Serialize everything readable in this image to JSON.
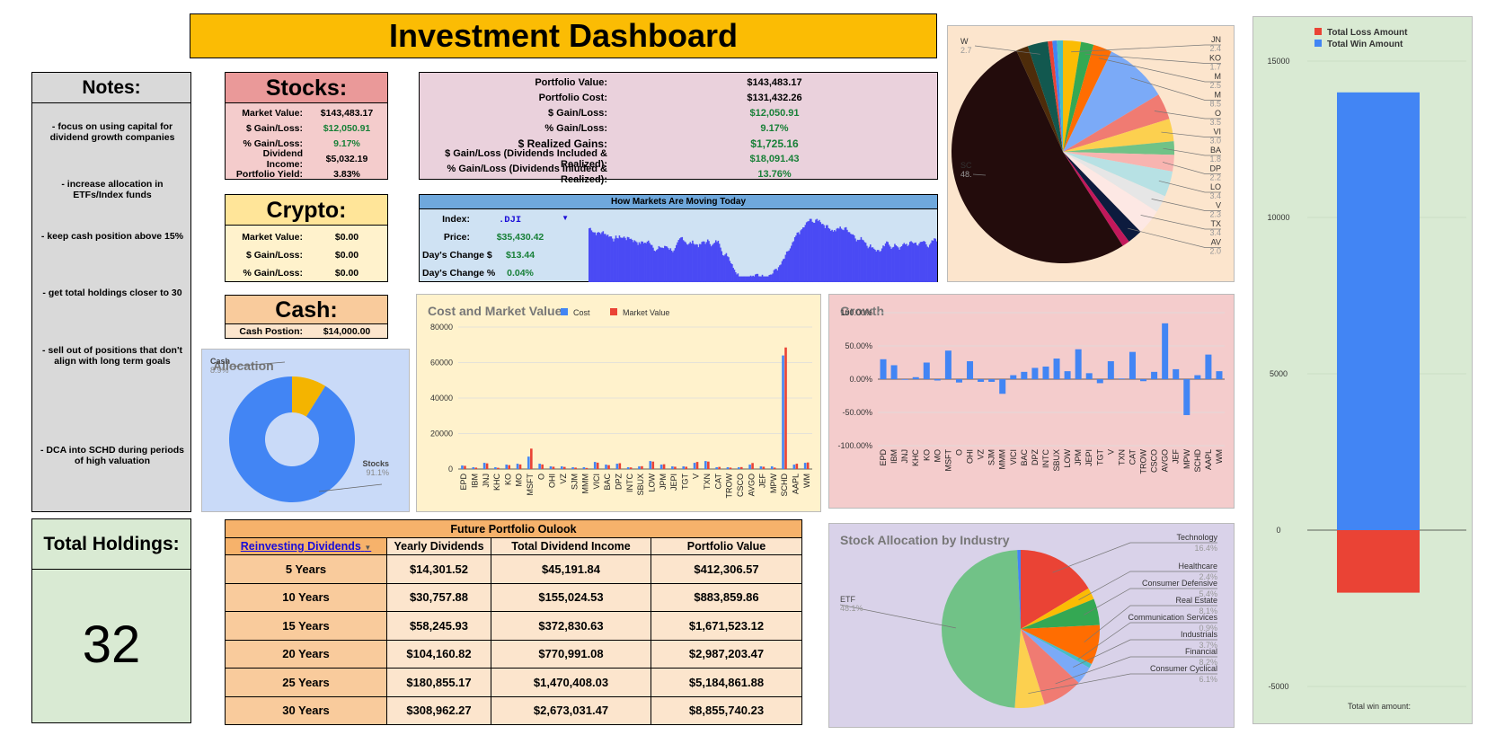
{
  "title": "Investment Dashboard",
  "notes": {
    "title": "Notes:",
    "items": [
      "- focus on using capital for dividend growth companies",
      "- increase allocation in ETFs/Index funds",
      "- keep cash position above 15%",
      "- get total holdings closer to 30",
      "- sell out of positions that don't align with long term goals",
      "- DCA into SCHD during periods of high valuation"
    ]
  },
  "holdings": {
    "title": "Total Holdings:",
    "value": "32"
  },
  "stocks": {
    "title": "Stocks:",
    "rows": [
      {
        "k": "Market Value:",
        "v": "$143,483.17"
      },
      {
        "k": "$ Gain/Loss:",
        "v": "$12,050.91"
      },
      {
        "k": "% Gain/Loss:",
        "v": "9.17%"
      },
      {
        "k": "Dividend Income:",
        "v": "$5,032.19"
      },
      {
        "k": "Portfolio Yield:",
        "v": "3.83%"
      }
    ]
  },
  "crypto": {
    "title": "Crypto:",
    "rows": [
      {
        "k": "Market Value:",
        "v": "$0.00"
      },
      {
        "k": "$ Gain/Loss:",
        "v": "$0.00"
      },
      {
        "k": "% Gain/Loss:",
        "v": "$0.00"
      }
    ]
  },
  "cash": {
    "title": "Cash:",
    "k": "Cash Postion:",
    "v": "$14,000.00"
  },
  "portfolio": {
    "rows": [
      {
        "k": "Portfolio Value:",
        "v": "$143,483.17"
      },
      {
        "k": "Portfolio Cost:",
        "v": "$131,432.26"
      },
      {
        "k": "$ Gain/Loss:",
        "v": "$12,050.91"
      },
      {
        "k": "% Gain/Loss:",
        "v": "9.17%"
      },
      {
        "k": "$ Realized Gains:",
        "v": "$1,725.16"
      },
      {
        "k": "$ Gain/Loss (Dividends Included & Realized):",
        "v": "$18,091.43"
      },
      {
        "k": "% Gain/Loss (Dividends Inluded & Realized):",
        "v": "13.76%"
      }
    ]
  },
  "markets": {
    "title": "How Markets Are Moving Today",
    "index_label": "Index:",
    "index_value": ".DJI",
    "price_label": "Price:",
    "price_value": "$35,430.42",
    "change_label": "Day's Change $",
    "change_value": "$13.44",
    "pct_label": "Day's Change %",
    "pct_value": "0.04%",
    "bar_color": "#4a4af4"
  },
  "outlook": {
    "title": "Future Portfolio Oulook",
    "headers": [
      "Reinvesting Dividends",
      "Yearly Dividends",
      "Total Dividend Income",
      "Portfolio Value"
    ],
    "rows": [
      [
        "5 Years",
        "$14,301.52",
        "$45,191.84",
        "$412,306.57"
      ],
      [
        "10 Years",
        "$30,757.88",
        "$155,024.53",
        "$883,859.86"
      ],
      [
        "15 Years",
        "$58,245.93",
        "$372,830.63",
        "$1,671,523.12"
      ],
      [
        "20 Years",
        "$104,160.82",
        "$770,991.08",
        "$2,987,203.47"
      ],
      [
        "25 Years",
        "$180,855.17",
        "$1,470,408.03",
        "$5,184,861.88"
      ],
      [
        "30 Years",
        "$308,962.27",
        "$2,673,031.47",
        "$8,855,740.23"
      ]
    ]
  },
  "chart_data": [
    {
      "id": "allocation",
      "type": "pie",
      "title": "Allocation",
      "slices": [
        {
          "label": "Cash",
          "value": 8.9,
          "pct": "8.9%",
          "color": "#f4b400"
        },
        {
          "label": "Stocks",
          "value": 91.1,
          "pct": "91.1%",
          "color": "#4285f4"
        }
      ]
    },
    {
      "id": "cost_market",
      "type": "bar",
      "title": "Cost and Market Value",
      "legend": "top",
      "ylim": [
        0,
        80000
      ],
      "yticks": [
        "0",
        "20000",
        "40000",
        "60000",
        "80000"
      ],
      "categories": [
        "EPD",
        "IBM",
        "JNJ",
        "KHC",
        "KO",
        "MO",
        "MSFT",
        "O",
        "OHI",
        "VZ",
        "SJM",
        "MMM",
        "VICI",
        "BAC",
        "DPZ",
        "INTC",
        "SBUX",
        "LOW",
        "JPM",
        "JEPI",
        "TGT",
        "V",
        "TXN",
        "CAT",
        "TROW",
        "CSCO",
        "AVGO",
        "JEF",
        "MPW",
        "SCHD",
        "AAPL",
        "WM"
      ],
      "series": [
        {
          "name": "Cost",
          "color": "#4285f4",
          "values": [
            2000,
            1000,
            3500,
            1000,
            2500,
            3000,
            7000,
            3000,
            1500,
            1500,
            1000,
            1000,
            4000,
            2500,
            3000,
            1000,
            1500,
            4500,
            2500,
            1500,
            1500,
            3500,
            4500,
            1000,
            1000,
            1000,
            2500,
            1500,
            1500,
            64000,
            2500,
            3500
          ]
        },
        {
          "name": "Market Value",
          "color": "#ea4335",
          "values": [
            1800,
            800,
            3200,
            700,
            2200,
            2600,
            11500,
            2600,
            1300,
            1200,
            800,
            600,
            3600,
            2200,
            3300,
            900,
            1600,
            4200,
            2700,
            1300,
            1300,
            4000,
            4200,
            1200,
            800,
            1100,
            3400,
            1300,
            800,
            68500,
            3000,
            3700
          ]
        }
      ]
    },
    {
      "id": "growth",
      "type": "bar",
      "title": "Growth",
      "ylim": [
        -100,
        100
      ],
      "yticks": [
        "100.00%",
        "50.00%",
        "0.00%",
        "-50.00%",
        "-100.00%"
      ],
      "categories": [
        "EPD",
        "IBM",
        "JNJ",
        "KHC",
        "KO",
        "MO",
        "MSFT",
        "O",
        "OHI",
        "VZ",
        "SJM",
        "MMM",
        "VICI",
        "BAC",
        "DPZ",
        "INTC",
        "SBUX",
        "LOW",
        "JPM",
        "JEPI",
        "TGT",
        "V",
        "TXN",
        "CAT",
        "TROW",
        "CSCO",
        "AVGO",
        "JEF",
        "MPW",
        "SCHD",
        "AAPL",
        "WM"
      ],
      "series": [
        {
          "name": "Growth",
          "color": "#4285f4",
          "values": [
            30,
            21,
            -1,
            3,
            25,
            -2,
            43,
            -5,
            27,
            -4,
            -4,
            -22,
            6,
            11,
            17,
            19,
            31,
            12,
            45,
            9,
            -6,
            27,
            1,
            41,
            -3,
            11,
            84,
            15,
            -54,
            6,
            37,
            12
          ]
        }
      ]
    },
    {
      "id": "industry",
      "type": "pie",
      "title": "Stock Allocation by Industry",
      "slices": [
        {
          "label": "Technology",
          "value": 16.4,
          "pct": "16.4%",
          "color": "#ea4335"
        },
        {
          "label": "Healthcare",
          "value": 2.4,
          "pct": "2.4%",
          "color": "#fbbc04"
        },
        {
          "label": "Consumer Defensive",
          "value": 5.4,
          "pct": "5.4%",
          "color": "#34a853"
        },
        {
          "label": "Real Estate",
          "value": 8.1,
          "pct": "8.1%",
          "color": "#ff6d01"
        },
        {
          "label": "Communication Services",
          "value": 0.9,
          "pct": "0.9%",
          "color": "#46bdc6"
        },
        {
          "label": "Industrials",
          "value": 3.7,
          "pct": "3.7%",
          "color": "#7baaf7"
        },
        {
          "label": "Financial",
          "value": 8.2,
          "pct": "8.2%",
          "color": "#f07b72"
        },
        {
          "label": "Consumer Cyclical",
          "value": 6.1,
          "pct": "6.1%",
          "color": "#fcd04f"
        },
        {
          "label": "ETF",
          "value": 48.1,
          "pct": "48.1%",
          "color": "#71c287"
        },
        {
          "label": "",
          "value": 0.7,
          "pct": "",
          "color": "#4285f4"
        }
      ]
    },
    {
      "id": "holdings_pie",
      "type": "pie",
      "title": "",
      "slices": [
        {
          "label": "JN",
          "value": 2.4,
          "pct": "2.4",
          "color": "#fbbc04"
        },
        {
          "label": "KO",
          "value": 1.7,
          "pct": "1.7",
          "color": "#34a853"
        },
        {
          "label": "M",
          "value": 2.5,
          "pct": "2.5",
          "color": "#ff6d01"
        },
        {
          "label": "M",
          "value": 8.5,
          "pct": "8.5",
          "color": "#7baaf7"
        },
        {
          "label": "O",
          "value": 3.5,
          "pct": "3.5",
          "color": "#f07b72"
        },
        {
          "label": "VI",
          "value": 3.0,
          "pct": "3.0",
          "color": "#fcd04f"
        },
        {
          "label": "BA",
          "value": 1.8,
          "pct": "1.8",
          "color": "#71c287"
        },
        {
          "label": "DP",
          "value": 2.2,
          "pct": "2.2",
          "color": "#f8b4b0"
        },
        {
          "label": "LO",
          "value": 3.4,
          "pct": "3.4",
          "color": "#b7e1e4"
        },
        {
          "label": "V",
          "value": 2.3,
          "pct": "2.3",
          "color": "#e6e6e6"
        },
        {
          "label": "TX",
          "value": 3.4,
          "pct": "3.4",
          "color": "#fde8e4"
        },
        {
          "label": "AV",
          "value": 2.0,
          "pct": "2.0",
          "color": "#0d1b3e"
        },
        {
          "label": "",
          "value": 1.0,
          "pct": "",
          "color": "#c2185b"
        },
        {
          "label": "SC",
          "value": 48.0,
          "pct": "48.",
          "color": "#230c0c"
        },
        {
          "label": "",
          "value": 1.6,
          "pct": "",
          "color": "#4e2c0a"
        },
        {
          "label": "W",
          "value": 2.7,
          "pct": "2.7",
          "color": "#12584f"
        },
        {
          "label": "",
          "value": 0.6,
          "pct": "",
          "color": "#ea4335"
        },
        {
          "label": "",
          "value": 0.6,
          "pct": "",
          "color": "#4285f4"
        },
        {
          "label": "",
          "value": 0.8,
          "pct": "",
          "color": "#46bdc6"
        }
      ]
    },
    {
      "id": "winloss",
      "type": "bar",
      "title": "",
      "xlabel": "Total win amount:",
      "ylim": [
        -5000,
        15000
      ],
      "yticks": [
        "15000",
        "10000",
        "5000",
        "0",
        "-5000"
      ],
      "legend": "top",
      "series": [
        {
          "name": "Total Loss Amount",
          "color": "#ea4335",
          "values": [
            -2000
          ]
        },
        {
          "name": "Total Win Amount",
          "color": "#4285f4",
          "values": [
            14000
          ]
        }
      ]
    }
  ]
}
